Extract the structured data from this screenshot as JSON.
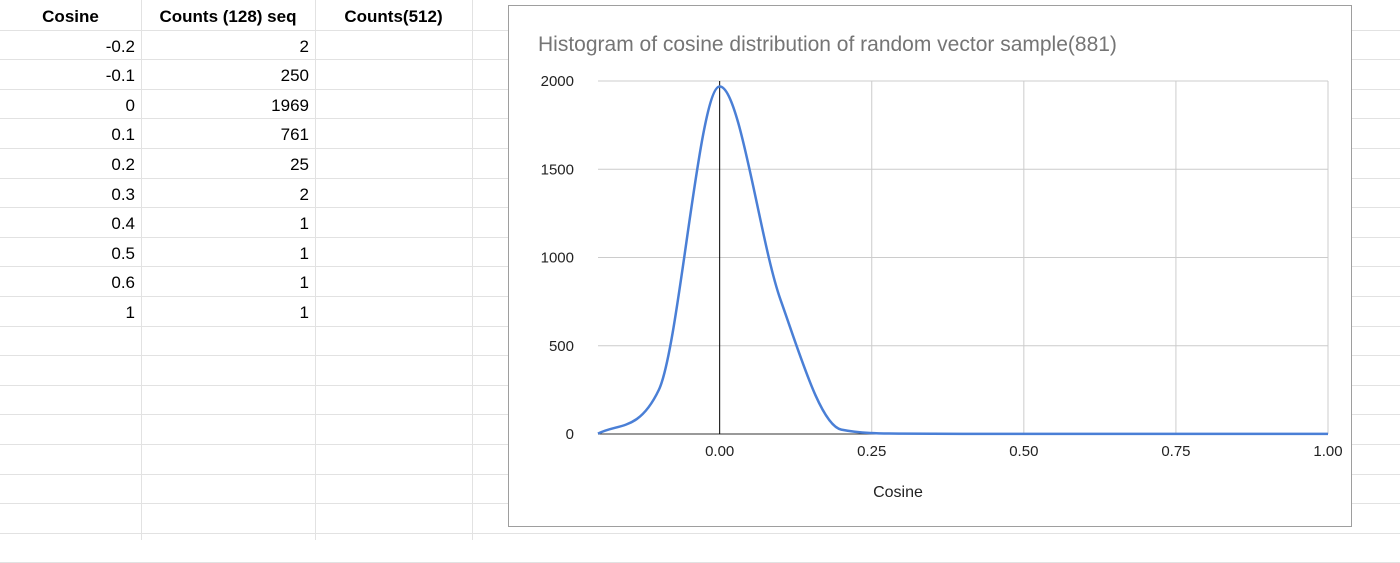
{
  "sheet": {
    "headers": [
      "Cosine",
      "Counts (128) seq",
      "Counts(512)"
    ],
    "rows": [
      {
        "cosine": "-0.2",
        "counts128": "2"
      },
      {
        "cosine": "-0.1",
        "counts128": "250"
      },
      {
        "cosine": "0",
        "counts128": "1969"
      },
      {
        "cosine": "0.1",
        "counts128": "761"
      },
      {
        "cosine": "0.2",
        "counts128": "25"
      },
      {
        "cosine": "0.3",
        "counts128": "2"
      },
      {
        "cosine": "0.4",
        "counts128": "1"
      },
      {
        "cosine": "0.5",
        "counts128": "1"
      },
      {
        "cosine": "0.6",
        "counts128": "1"
      },
      {
        "cosine": "1",
        "counts128": "1"
      }
    ]
  },
  "chart_data": {
    "type": "line",
    "title": "Histogram of cosine distribution of random vector sample(881)",
    "xlabel": "Cosine",
    "ylabel": "",
    "x_ticks": [
      "0.00",
      "0.25",
      "0.50",
      "0.75",
      "1.00"
    ],
    "y_ticks": [
      "0",
      "500",
      "1000",
      "1500",
      "2000"
    ],
    "xlim": [
      -0.2,
      1.0
    ],
    "ylim": [
      0,
      2000
    ],
    "grid": true,
    "line_color": "#4a7fd6",
    "series": [
      {
        "x": [
          -0.2,
          -0.1,
          0,
          0.1,
          0.2,
          0.3,
          0.4,
          0.5,
          0.6,
          1.0
        ],
        "y": [
          2,
          250,
          1969,
          761,
          25,
          2,
          1,
          1,
          1,
          1
        ]
      }
    ]
  }
}
